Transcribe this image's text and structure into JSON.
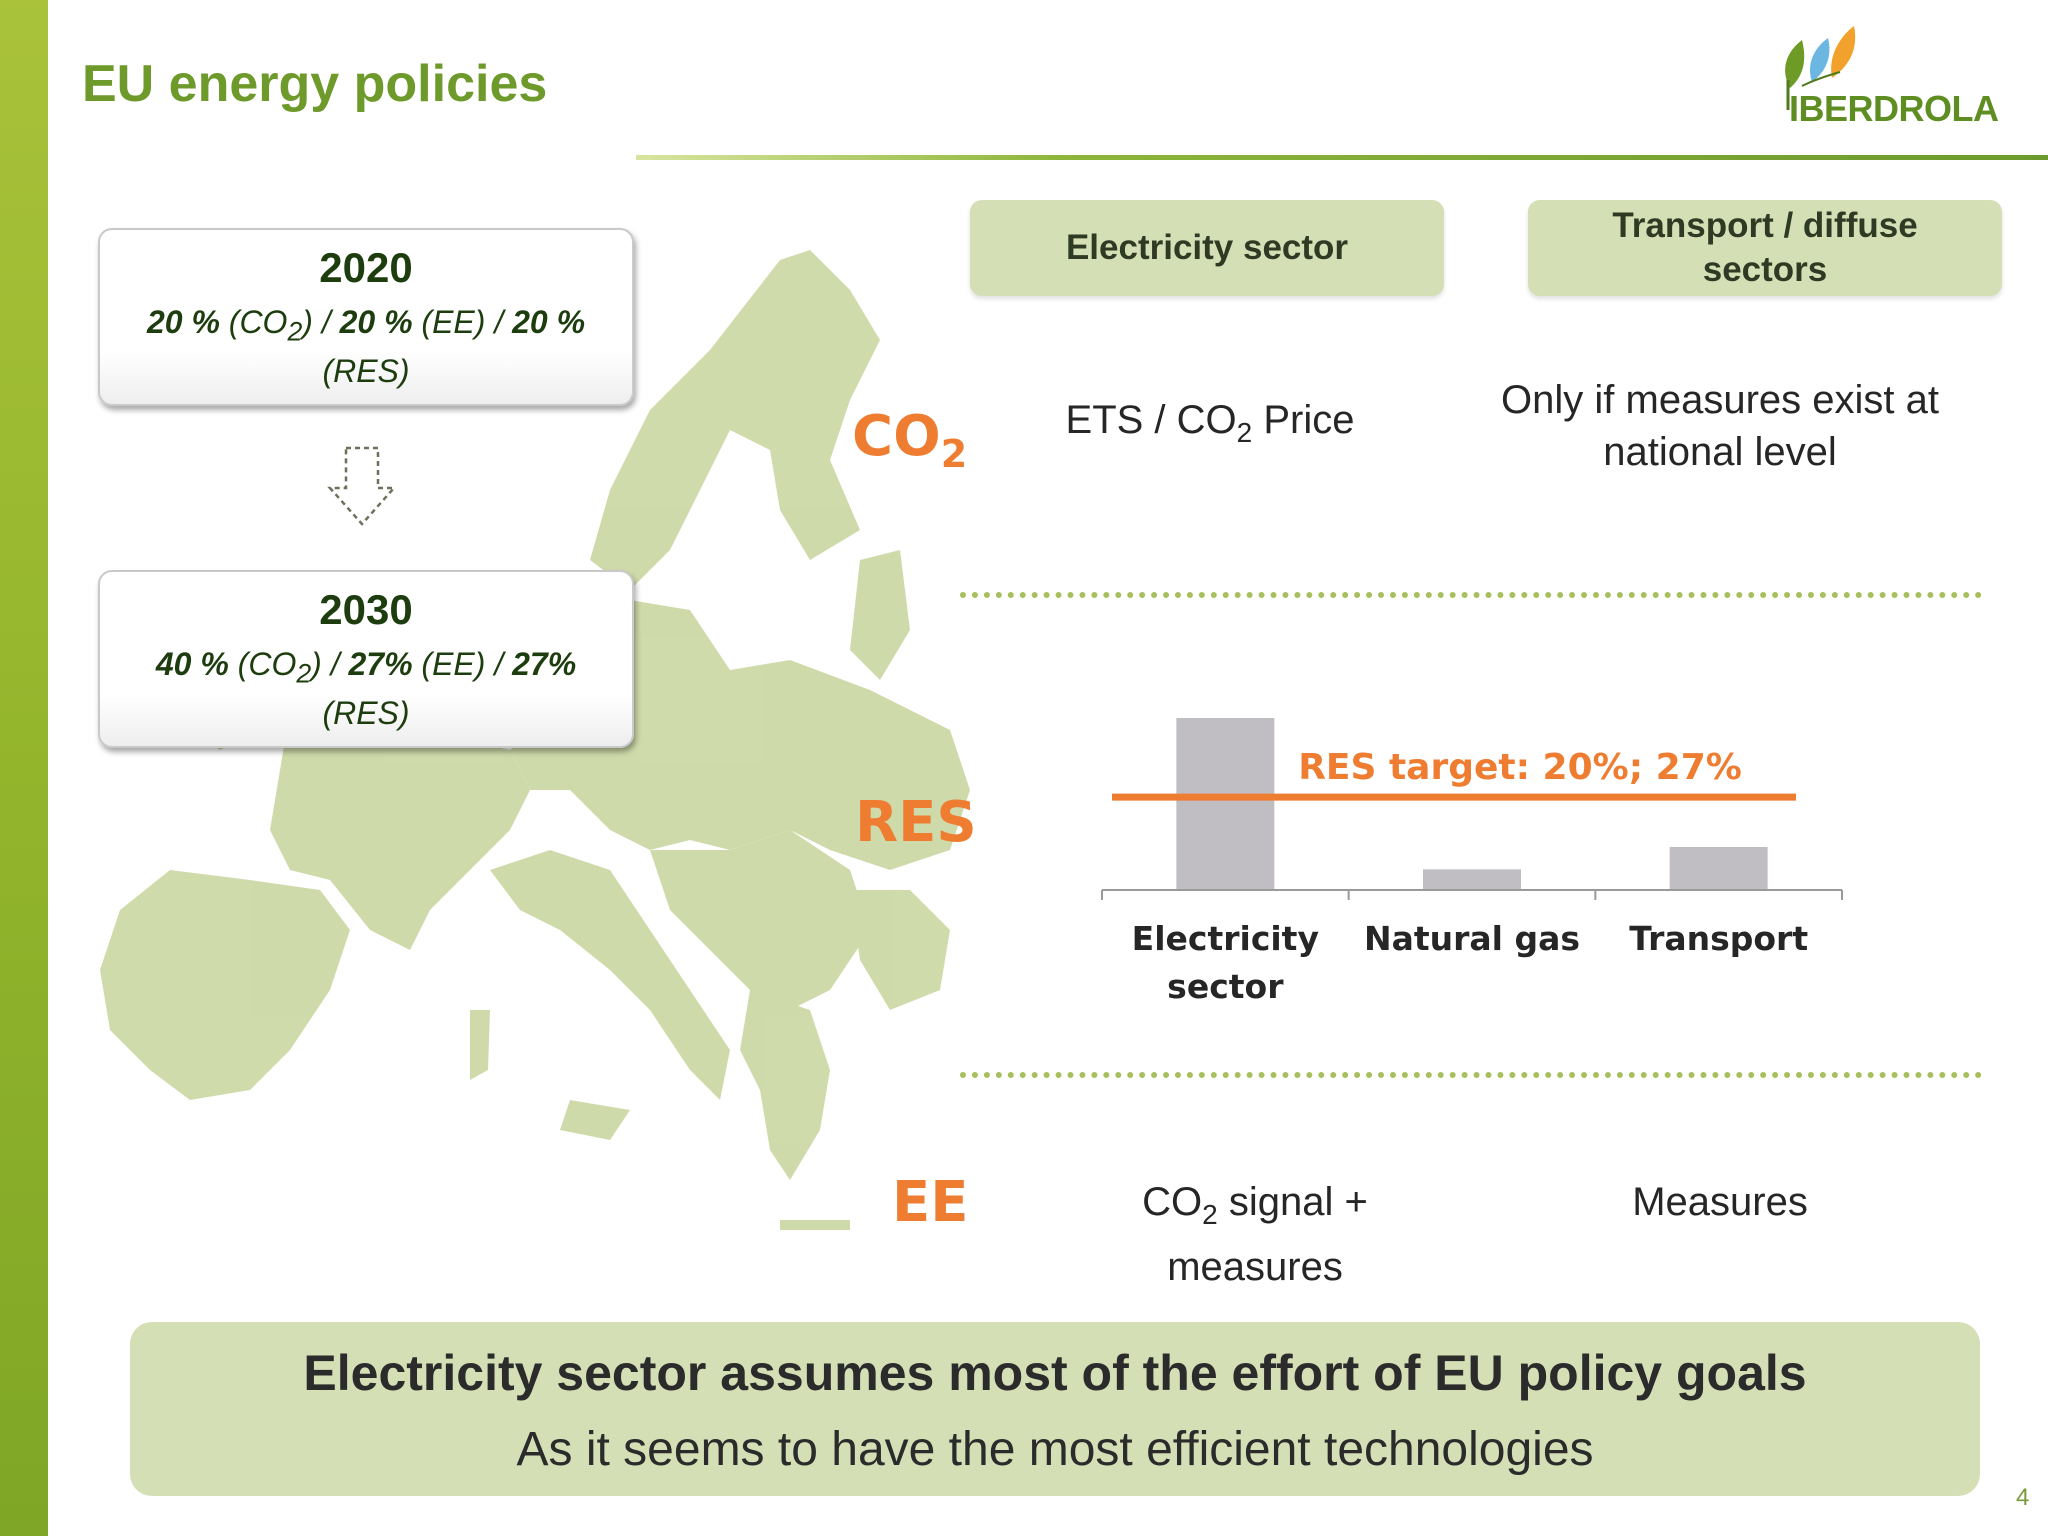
{
  "title": "EU energy policies",
  "logo": {
    "text": "IBERDROLA"
  },
  "targets": [
    {
      "year": "2020",
      "bold1": "20 %",
      "t1": " (CO",
      "sub1": "2",
      "t2": ") / ",
      "bold2": "20 %",
      "t3": " (EE) / ",
      "bold3": "20 %",
      "t4": " (RES)"
    },
    {
      "year": "2030",
      "bold1": "40 %",
      "t1": " (CO",
      "sub1": "2",
      "t2": ") / ",
      "bold2": "27%",
      "t3": " (EE) / ",
      "bold3": "27%",
      "t4": " (RES)"
    }
  ],
  "columns": [
    "Electricity sector",
    "Transport / diffuse sectors"
  ],
  "rows": {
    "co2": {
      "label": "CO",
      "label_sub": "2",
      "electricity_a": "ETS / CO",
      "electricity_sub": "2",
      "electricity_b": " Price",
      "transport": "Only if measures exist at national level"
    },
    "res": {
      "label": "RES"
    },
    "ee": {
      "label": "EE",
      "electricity_a": "CO",
      "electricity_sub": "2",
      "electricity_b": " signal + measures",
      "transport": "Measures"
    }
  },
  "chart_data": {
    "type": "bar",
    "categories": [
      "Electricity sector",
      "Natural gas",
      "Transport"
    ],
    "values": [
      100,
      12,
      25
    ],
    "target_value": 54,
    "target_label": "RES target: 20%; 27%",
    "bar_color": "#c0bec3",
    "target_color": "#ee7d31",
    "ylim": [
      0,
      100
    ]
  },
  "summary": {
    "headline": "Electricity sector assumes most of the effort of EU policy goals",
    "subline": "As it seems to have the most efficient technologies"
  },
  "page_number": "4"
}
